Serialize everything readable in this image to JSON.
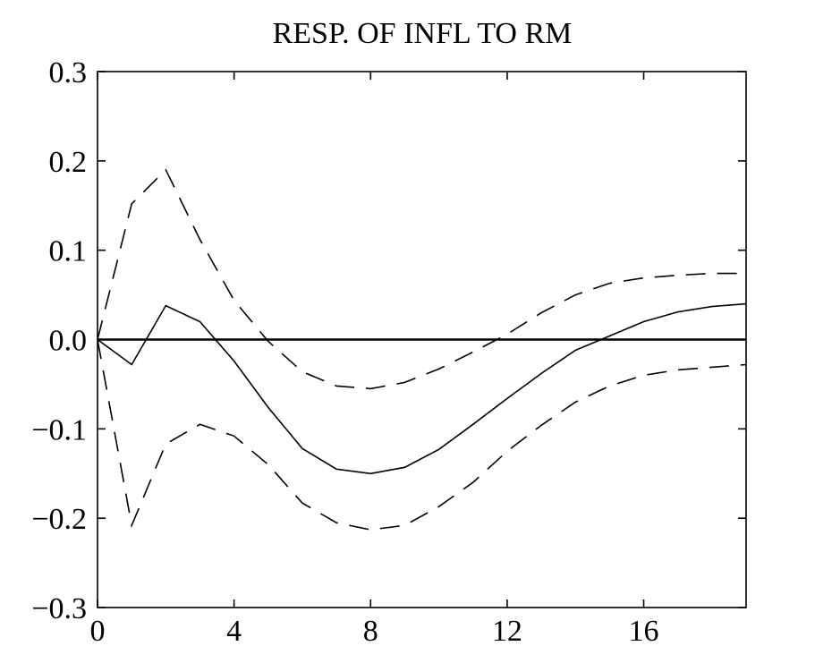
{
  "chart_data": {
    "type": "line",
    "title": "RESP. OF INFL TO RM",
    "xlabel": "",
    "ylabel": "",
    "xlim": [
      0,
      19
    ],
    "ylim": [
      -0.3,
      0.3
    ],
    "x_ticks": [
      0,
      4,
      8,
      12,
      16
    ],
    "x_tick_labels": [
      "0",
      "4",
      "8",
      "12",
      "16"
    ],
    "y_ticks": [
      -0.3,
      -0.2,
      -0.1,
      0.0,
      0.1,
      0.2,
      0.3
    ],
    "y_tick_labels": [
      "−0.3",
      "−0.2",
      "−0.1",
      "0.0",
      "0.1",
      "0.2",
      "0.3"
    ],
    "grid": false,
    "zero_line": true,
    "x": [
      0,
      1,
      2,
      3,
      4,
      5,
      6,
      7,
      8,
      9,
      10,
      11,
      12,
      13,
      14,
      15,
      16,
      17,
      18,
      19
    ],
    "series": [
      {
        "style": "solid",
        "values": [
          0.0,
          -0.028,
          0.038,
          0.02,
          -0.024,
          -0.076,
          -0.122,
          -0.145,
          -0.15,
          -0.143,
          -0.123,
          -0.095,
          -0.066,
          -0.038,
          -0.012,
          0.004,
          0.02,
          0.031,
          0.037,
          0.04
        ]
      },
      {
        "style": "dashed",
        "values": [
          0.0,
          0.152,
          0.19,
          0.112,
          0.044,
          -0.002,
          -0.036,
          -0.052,
          -0.055,
          -0.048,
          -0.033,
          -0.014,
          0.006,
          0.03,
          0.05,
          0.063,
          0.069,
          0.072,
          0.074,
          0.074
        ]
      },
      {
        "style": "dashed",
        "values": [
          0.0,
          -0.208,
          -0.117,
          -0.095,
          -0.108,
          -0.14,
          -0.183,
          -0.205,
          -0.213,
          -0.208,
          -0.187,
          -0.16,
          -0.125,
          -0.096,
          -0.07,
          -0.052,
          -0.04,
          -0.034,
          -0.031,
          -0.028
        ]
      }
    ]
  }
}
